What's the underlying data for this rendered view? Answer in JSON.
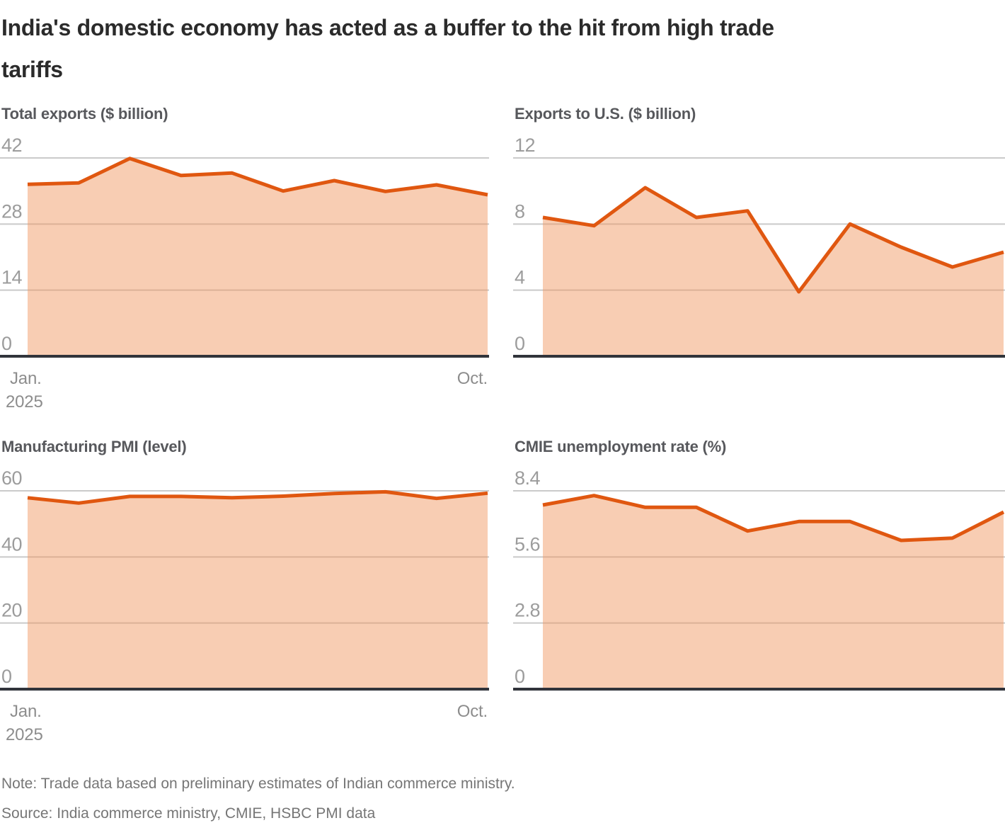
{
  "title_lines": [
    "India's domestic economy has acted as a buffer to the hit from high trade",
    "tariffs"
  ],
  "note": "Note: Trade data based on preliminary estimates of Indian commerce ministry.",
  "source": "Source: India commerce ministry, CMIE, HSBC PMI data",
  "colors": {
    "accent_line": "#e05710",
    "area_fill_base": "#f09660",
    "area_fill_opacity": 0.48,
    "gridline": "#cacaca",
    "axis_baseline": "#31343b",
    "tick_label": "#9c9c9c",
    "axis_label": "#8d8d8d",
    "chart_heading": "#57585c",
    "title": "#2b2b2b",
    "footnote": "#767676"
  },
  "x_axis": {
    "start_label_line1": "Jan.",
    "start_label_line2": "2025",
    "end_label": "Oct."
  },
  "chart_data": [
    {
      "type": "area",
      "title": "Total exports ($ billion)",
      "x_months": [
        "Jan 2025",
        "Feb 2025",
        "Mar 2025",
        "Apr 2025",
        "May 2025",
        "Jun 2025",
        "Jul 2025",
        "Aug 2025",
        "Sep 2025",
        "Oct 2025"
      ],
      "values": [
        36.4,
        36.7,
        41.9,
        38.3,
        38.8,
        35.0,
        37.2,
        34.9,
        36.3,
        34.2
      ],
      "ylim": [
        0,
        42
      ],
      "yticks": [
        {
          "v": 42,
          "label": "42"
        },
        {
          "v": 28,
          "label": "28"
        },
        {
          "v": 14,
          "label": "14"
        },
        {
          "v": 0,
          "label": "0"
        }
      ],
      "x_tick_labels_shown": [
        "Jan. 2025",
        "Oct."
      ],
      "grid": "horizontal",
      "legend": "none"
    },
    {
      "type": "area",
      "title": "Exports to U.S. ($ billion)",
      "x_months": [
        "Jan 2025",
        "Feb 2025",
        "Mar 2025",
        "Apr 2025",
        "May 2025",
        "Jun 2025",
        "Jul 2025",
        "Aug 2025",
        "Sep 2025",
        "Oct 2025"
      ],
      "values": [
        8.4,
        7.9,
        10.2,
        8.4,
        8.8,
        3.9,
        8.0,
        6.6,
        5.4,
        6.3
      ],
      "ylim": [
        0,
        12
      ],
      "yticks": [
        {
          "v": 12,
          "label": "12"
        },
        {
          "v": 8,
          "label": "8"
        },
        {
          "v": 4,
          "label": "4"
        },
        {
          "v": 0,
          "label": "0"
        }
      ],
      "x_tick_labels_shown": [],
      "grid": "horizontal",
      "legend": "none"
    },
    {
      "type": "area",
      "title": "Manufacturing PMI (level)",
      "x_months": [
        "Jan 2025",
        "Feb 2025",
        "Mar 2025",
        "Apr 2025",
        "May 2025",
        "Jun 2025",
        "Jul 2025",
        "Aug 2025",
        "Sep 2025",
        "Oct 2025"
      ],
      "values": [
        57.9,
        56.3,
        58.3,
        58.3,
        57.9,
        58.4,
        59.2,
        59.7,
        57.7,
        59.3
      ],
      "ylim": [
        0,
        60
      ],
      "yticks": [
        {
          "v": 60,
          "label": "60"
        },
        {
          "v": 40,
          "label": "40"
        },
        {
          "v": 20,
          "label": "20"
        },
        {
          "v": 0,
          "label": "0"
        }
      ],
      "x_tick_labels_shown": [
        "Jan. 2025",
        "Oct."
      ],
      "grid": "horizontal",
      "legend": "none"
    },
    {
      "type": "area",
      "title": "CMIE unemployment rate (%)",
      "x_months": [
        "Jan 2025",
        "Feb 2025",
        "Mar 2025",
        "Apr 2025",
        "May 2025",
        "Jun 2025",
        "Jul 2025",
        "Aug 2025",
        "Sep 2025",
        "Oct 2025"
      ],
      "values": [
        7.8,
        8.2,
        7.7,
        7.7,
        6.7,
        7.1,
        7.1,
        6.3,
        6.4,
        7.5
      ],
      "ylim": [
        0,
        8.4
      ],
      "yticks": [
        {
          "v": 8.4,
          "label": "8.4"
        },
        {
          "v": 5.6,
          "label": "5.6"
        },
        {
          "v": 2.8,
          "label": "2.8"
        },
        {
          "v": 0,
          "label": "0"
        }
      ],
      "x_tick_labels_shown": [],
      "grid": "horizontal",
      "legend": "none"
    }
  ]
}
